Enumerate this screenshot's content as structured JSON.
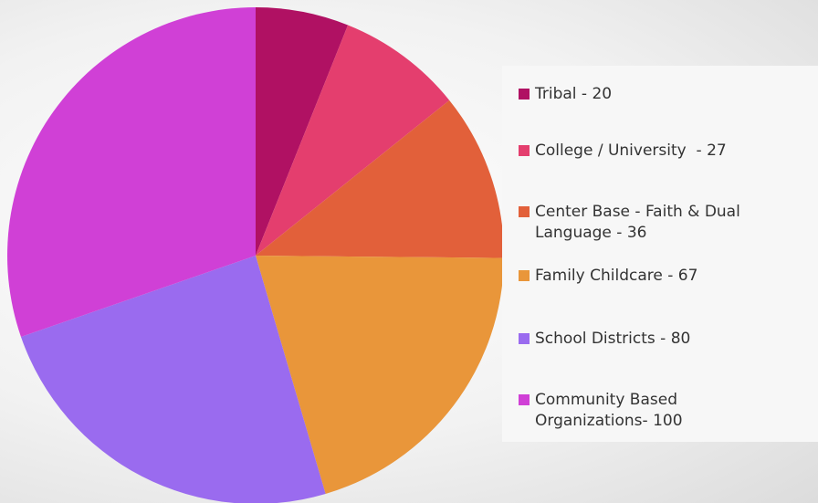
{
  "chart_data": {
    "type": "pie",
    "categories": [
      "Tribal",
      "College / University",
      "Center Base - Faith & Dual Language",
      "Family Childcare",
      "School Districts",
      "Community Based Organizations"
    ],
    "values": [
      20,
      27,
      36,
      67,
      80,
      100
    ],
    "legend_labels": [
      "Tribal - 20",
      "College / University  - 27",
      "Center Base - Faith & Dual Language - 36",
      "Family Childcare - 67",
      "School Districts - 80",
      "Community Based Organizations- 100"
    ],
    "colors": [
      "#b01163",
      "#e43e6e",
      "#e2603a",
      "#e9963a",
      "#9a6bef",
      "#d040d6"
    ],
    "legend_position": "right",
    "start_angle": "12 o'clock",
    "direction": "clockwise"
  }
}
